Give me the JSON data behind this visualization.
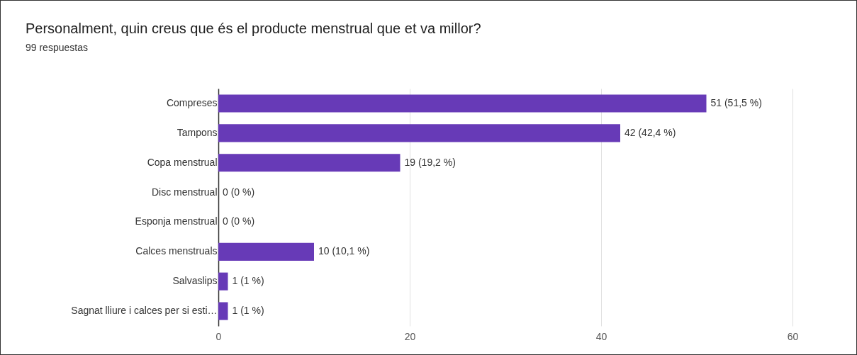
{
  "chart_data": {
    "type": "bar",
    "orientation": "horizontal",
    "title": "Personalment, quin creus que és el producte menstrual que et va millor?",
    "subtitle": "99 respuestas",
    "categories": [
      "Compreses",
      "Tampons",
      "Copa menstrual",
      "Disc menstrual",
      "Esponja menstrual",
      "Calces menstruals",
      "Salvaslips",
      "Sagnat lliure i calces per si esti…"
    ],
    "values": [
      51,
      42,
      19,
      0,
      0,
      10,
      1,
      1
    ],
    "value_labels": [
      "51 (51,5 %)",
      "42 (42,4 %)",
      "19 (19,2 %)",
      "0 (0 %)",
      "0 (0 %)",
      "10 (10,1 %)",
      "1 (1 %)",
      "1 (1 %)"
    ],
    "color": "#673ab7",
    "xlim": [
      0,
      60
    ],
    "xticks": [
      0,
      20,
      40,
      60
    ],
    "grid": "x"
  }
}
